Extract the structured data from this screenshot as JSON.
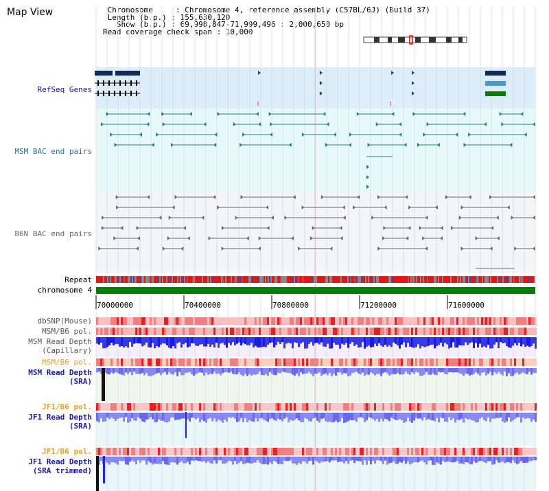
{
  "window": {
    "title": "Map View"
  },
  "info": {
    "line1": " Chromosome     : Chromosome 4, reference assembly (C57BL/6J) (Build 37)",
    "line2": " Length (b.p.) : 155,630,120",
    "line3": "   Show (b.p.) : 69,998,847-71,999,496 : 2,000,650 bp",
    "line4": "Read coverage check span : 10,000"
  },
  "tracks": {
    "refseq": "RefSeq Genes",
    "msm_bac": "MSM BAC end pairs",
    "b6n_bac": "B6N BAC end pairs",
    "repeat": "Repeat",
    "chromosome": "chromosome 4",
    "dbsnp": "dbSNP(Mouse)",
    "msm_b6_pol_1": "MSM/B6 pol.",
    "msm_read_depth_cap": "MSM Read Depth\n(Capillary)",
    "msm_b6_pol_2": "MSM/B6 pol.",
    "msm_read_depth_sra": "MSM Read Depth\n(SRA)",
    "jf1_b6_pol_1": "JF1/B6 pol.",
    "jf1_read_depth_sra": "JF1 Read Depth\n(SRA)",
    "jf1_b6_pol_2": "JF1/B6 pol.",
    "jf1_read_depth_trim": "JF1 Read Depth\n(SRA trimmed)"
  },
  "axis": {
    "ticks": [
      "70000000",
      "70400000",
      "70800000",
      "71200000",
      "71600000"
    ]
  },
  "colors": {
    "refseq_bg": "#ddeefa",
    "msm_bg": "#e6fafa",
    "b6n_bg": "#f4f5f8",
    "label_blue": "#1a1aa8",
    "label_teal": "#2a7a86",
    "label_gray": "#6a6a6a",
    "label_orange": "#e8a020",
    "chromosome_green": "#0a7a0a",
    "depth_blue": "#1a1ae8",
    "depth_light": "#8888f8"
  }
}
